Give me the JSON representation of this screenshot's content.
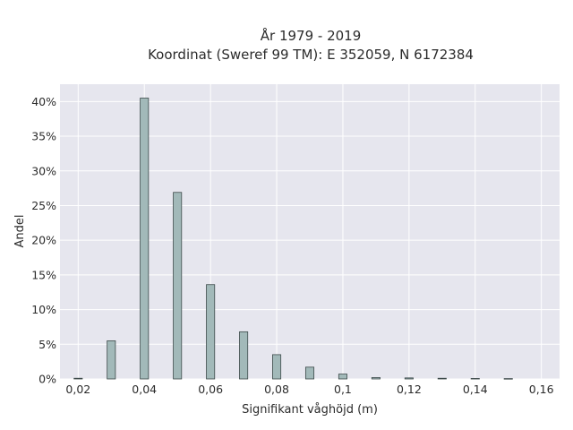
{
  "chart_data": {
    "type": "bar",
    "title": [
      "År 1979 - 2019",
      "Koordinat (Sweref 99 TM): E 352059, N 6172384"
    ],
    "xlabel": "Signifikant våghöjd (m)",
    "ylabel": "Andel",
    "x": [
      0.02,
      0.03,
      0.04,
      0.05,
      0.06,
      0.07,
      0.08,
      0.09,
      0.1,
      0.11,
      0.12,
      0.13,
      0.14,
      0.15
    ],
    "values": [
      0.1,
      5.5,
      40.5,
      26.9,
      13.6,
      6.8,
      3.5,
      1.7,
      0.7,
      0.2,
      0.15,
      0.1,
      0.07,
      0.05
    ],
    "xlim": [
      0.0145,
      0.1655
    ],
    "ylim": [
      0,
      42.5
    ],
    "xticks": [
      0.02,
      0.04,
      0.06,
      0.08,
      0.1,
      0.12,
      0.14,
      0.16
    ],
    "xtick_labels": [
      "0,02",
      "0,04",
      "0,06",
      "0,08",
      "0,1",
      "0,12",
      "0,14",
      "0,16"
    ],
    "yticks": [
      0,
      5,
      10,
      15,
      20,
      25,
      30,
      35,
      40
    ],
    "ytick_labels": [
      "0%",
      "5%",
      "10%",
      "15%",
      "20%",
      "25%",
      "30%",
      "35%",
      "40%"
    ],
    "bar_width": 0.0025,
    "grid": true,
    "plot_background": "#e6e6ee",
    "bar_color": "#a2b9b9",
    "bar_edge_color": "#3d4a4a"
  }
}
